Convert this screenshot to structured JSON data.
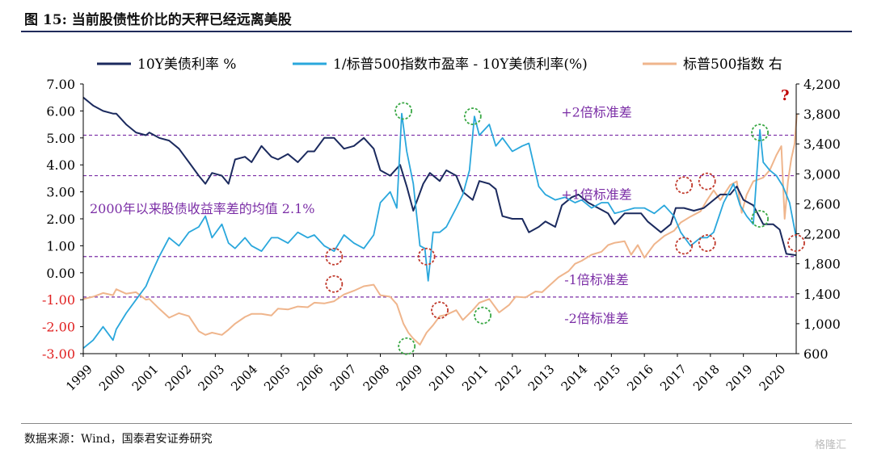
{
  "figure": {
    "title": "图 15:  当前股债性价比的天秤已经远离美股",
    "source": "数据来源：Wind，国泰君安证券研究",
    "watermark": "格隆汇"
  },
  "colors": {
    "treasury": "#1b2a5e",
    "spread": "#2aa7dc",
    "sp500": "#efb58c",
    "band": "#7b2ea6",
    "red_marker": "#c0392b",
    "green_marker": "#3aa845",
    "question": "#c00000"
  },
  "chart_data": {
    "type": "line",
    "x_range": [
      1999.0,
      2020.6
    ],
    "x_ticks": [
      "1999",
      "2000",
      "2001",
      "2002",
      "2003",
      "2004",
      "2005",
      "2006",
      "2007",
      "2008",
      "2009",
      "2010",
      "2011",
      "2012",
      "2013",
      "2014",
      "2015",
      "2016",
      "2017",
      "2018",
      "2019",
      "2020"
    ],
    "y_left": {
      "range": [
        -3,
        7
      ],
      "ticks": [
        "7.00",
        "6.00",
        "5.00",
        "4.00",
        "3.00",
        "2.00",
        "1.00",
        "0.00",
        "-1.00",
        "-2.00",
        "-3.00"
      ]
    },
    "y_right": {
      "range": [
        600,
        4200
      ],
      "ticks": [
        "4,200",
        "3,800",
        "3,400",
        "3,000",
        "2,600",
        "2,200",
        "1,800",
        "1,400",
        "1,000",
        "600"
      ]
    },
    "series": [
      {
        "name": "10Y美债利率 %",
        "axis": "left",
        "points": [
          [
            1999.0,
            6.5
          ],
          [
            1999.3,
            6.2
          ],
          [
            1999.6,
            6.0
          ],
          [
            1999.9,
            5.9
          ],
          [
            2000.0,
            5.9
          ],
          [
            2000.3,
            5.5
          ],
          [
            2000.6,
            5.2
          ],
          [
            2000.9,
            5.1
          ],
          [
            2001.0,
            5.2
          ],
          [
            2001.3,
            5.0
          ],
          [
            2001.6,
            4.9
          ],
          [
            2001.9,
            4.6
          ],
          [
            2002.2,
            4.1
          ],
          [
            2002.5,
            3.6
          ],
          [
            2002.7,
            3.3
          ],
          [
            2002.9,
            3.7
          ],
          [
            2003.2,
            3.6
          ],
          [
            2003.4,
            3.3
          ],
          [
            2003.6,
            4.2
          ],
          [
            2003.9,
            4.3
          ],
          [
            2004.1,
            4.1
          ],
          [
            2004.4,
            4.7
          ],
          [
            2004.7,
            4.3
          ],
          [
            2004.9,
            4.2
          ],
          [
            2005.2,
            4.4
          ],
          [
            2005.5,
            4.1
          ],
          [
            2005.8,
            4.5
          ],
          [
            2006.0,
            4.5
          ],
          [
            2006.3,
            5.0
          ],
          [
            2006.6,
            5.0
          ],
          [
            2006.9,
            4.6
          ],
          [
            2007.2,
            4.7
          ],
          [
            2007.5,
            5.0
          ],
          [
            2007.8,
            4.6
          ],
          [
            2008.0,
            3.8
          ],
          [
            2008.3,
            3.6
          ],
          [
            2008.6,
            4.0
          ],
          [
            2008.8,
            3.2
          ],
          [
            2009.0,
            2.3
          ],
          [
            2009.3,
            3.3
          ],
          [
            2009.5,
            3.7
          ],
          [
            2009.8,
            3.4
          ],
          [
            2010.0,
            3.8
          ],
          [
            2010.3,
            3.6
          ],
          [
            2010.5,
            3.0
          ],
          [
            2010.8,
            2.7
          ],
          [
            2011.0,
            3.4
          ],
          [
            2011.3,
            3.3
          ],
          [
            2011.5,
            3.1
          ],
          [
            2011.7,
            2.1
          ],
          [
            2012.0,
            2.0
          ],
          [
            2012.3,
            2.0
          ],
          [
            2012.5,
            1.5
          ],
          [
            2012.8,
            1.7
          ],
          [
            2013.0,
            1.9
          ],
          [
            2013.3,
            1.7
          ],
          [
            2013.5,
            2.5
          ],
          [
            2013.8,
            2.8
          ],
          [
            2014.0,
            2.9
          ],
          [
            2014.3,
            2.6
          ],
          [
            2014.6,
            2.4
          ],
          [
            2014.9,
            2.2
          ],
          [
            2015.1,
            1.8
          ],
          [
            2015.4,
            2.2
          ],
          [
            2015.7,
            2.2
          ],
          [
            2015.9,
            2.2
          ],
          [
            2016.1,
            1.9
          ],
          [
            2016.5,
            1.5
          ],
          [
            2016.8,
            1.8
          ],
          [
            2016.95,
            2.4
          ],
          [
            2017.2,
            2.4
          ],
          [
            2017.5,
            2.3
          ],
          [
            2017.8,
            2.4
          ],
          [
            2018.0,
            2.6
          ],
          [
            2018.3,
            2.9
          ],
          [
            2018.6,
            2.9
          ],
          [
            2018.8,
            3.2
          ],
          [
            2019.0,
            2.7
          ],
          [
            2019.3,
            2.5
          ],
          [
            2019.6,
            1.8
          ],
          [
            2019.9,
            1.8
          ],
          [
            2020.1,
            1.6
          ],
          [
            2020.3,
            0.7
          ],
          [
            2020.6,
            0.65
          ]
        ]
      },
      {
        "name": "1/标普500指数市盈率 - 10Y美债利率(%)",
        "axis": "left",
        "points": [
          [
            1999.0,
            -2.8
          ],
          [
            1999.3,
            -2.5
          ],
          [
            1999.6,
            -2.0
          ],
          [
            1999.9,
            -2.5
          ],
          [
            2000.0,
            -2.1
          ],
          [
            2000.3,
            -1.5
          ],
          [
            2000.6,
            -1.0
          ],
          [
            2000.9,
            -0.5
          ],
          [
            2001.0,
            -0.2
          ],
          [
            2001.3,
            0.6
          ],
          [
            2001.6,
            1.3
          ],
          [
            2001.9,
            1.0
          ],
          [
            2002.2,
            1.5
          ],
          [
            2002.5,
            1.7
          ],
          [
            2002.7,
            2.1
          ],
          [
            2002.9,
            1.3
          ],
          [
            2003.2,
            1.8
          ],
          [
            2003.4,
            1.1
          ],
          [
            2003.6,
            0.9
          ],
          [
            2003.9,
            1.3
          ],
          [
            2004.1,
            1.0
          ],
          [
            2004.4,
            0.8
          ],
          [
            2004.7,
            1.3
          ],
          [
            2004.9,
            1.3
          ],
          [
            2005.2,
            1.1
          ],
          [
            2005.5,
            1.5
          ],
          [
            2005.8,
            1.3
          ],
          [
            2006.0,
            1.4
          ],
          [
            2006.3,
            1.0
          ],
          [
            2006.6,
            0.8
          ],
          [
            2006.9,
            1.4
          ],
          [
            2007.2,
            1.1
          ],
          [
            2007.5,
            0.9
          ],
          [
            2007.8,
            1.4
          ],
          [
            2008.0,
            2.6
          ],
          [
            2008.3,
            3.0
          ],
          [
            2008.5,
            2.4
          ],
          [
            2008.65,
            5.9
          ],
          [
            2008.8,
            4.5
          ],
          [
            2009.0,
            3.3
          ],
          [
            2009.2,
            1.0
          ],
          [
            2009.35,
            0.9
          ],
          [
            2009.45,
            -0.3
          ],
          [
            2009.6,
            1.5
          ],
          [
            2009.8,
            1.5
          ],
          [
            2010.0,
            1.7
          ],
          [
            2010.3,
            2.4
          ],
          [
            2010.5,
            2.9
          ],
          [
            2010.7,
            3.8
          ],
          [
            2010.85,
            5.8
          ],
          [
            2011.0,
            5.1
          ],
          [
            2011.3,
            5.5
          ],
          [
            2011.5,
            4.7
          ],
          [
            2011.7,
            5.0
          ],
          [
            2012.0,
            4.5
          ],
          [
            2012.3,
            4.7
          ],
          [
            2012.5,
            4.8
          ],
          [
            2012.8,
            3.2
          ],
          [
            2013.0,
            2.9
          ],
          [
            2013.3,
            2.7
          ],
          [
            2013.6,
            2.8
          ],
          [
            2013.9,
            2.6
          ],
          [
            2014.1,
            2.7
          ],
          [
            2014.4,
            2.4
          ],
          [
            2014.7,
            2.6
          ],
          [
            2014.9,
            2.6
          ],
          [
            2015.1,
            2.2
          ],
          [
            2015.4,
            2.3
          ],
          [
            2015.7,
            2.4
          ],
          [
            2016.0,
            2.4
          ],
          [
            2016.3,
            2.2
          ],
          [
            2016.6,
            2.5
          ],
          [
            2016.9,
            2.1
          ],
          [
            2017.1,
            1.5
          ],
          [
            2017.4,
            1.0
          ],
          [
            2017.7,
            1.3
          ],
          [
            2017.9,
            1.3
          ],
          [
            2018.1,
            1.5
          ],
          [
            2018.4,
            2.6
          ],
          [
            2018.7,
            3.3
          ],
          [
            2018.9,
            2.5
          ],
          [
            2019.1,
            2.1
          ],
          [
            2019.3,
            1.8
          ],
          [
            2019.5,
            5.3
          ],
          [
            2019.6,
            4.1
          ],
          [
            2019.8,
            3.8
          ],
          [
            2020.0,
            3.6
          ],
          [
            2020.2,
            3.2
          ],
          [
            2020.4,
            2.6
          ],
          [
            2020.6,
            1.3
          ]
        ]
      },
      {
        "name": "标普500指数 右",
        "axis": "right",
        "points": [
          [
            1999.0,
            1330
          ],
          [
            1999.3,
            1360
          ],
          [
            1999.6,
            1410
          ],
          [
            1999.9,
            1380
          ],
          [
            2000.0,
            1460
          ],
          [
            2000.3,
            1400
          ],
          [
            2000.6,
            1420
          ],
          [
            2000.9,
            1320
          ],
          [
            2001.0,
            1330
          ],
          [
            2001.3,
            1200
          ],
          [
            2001.6,
            1080
          ],
          [
            2001.9,
            1140
          ],
          [
            2002.2,
            1100
          ],
          [
            2002.5,
            900
          ],
          [
            2002.7,
            850
          ],
          [
            2002.9,
            880
          ],
          [
            2003.2,
            850
          ],
          [
            2003.4,
            920
          ],
          [
            2003.6,
            1000
          ],
          [
            2003.9,
            1090
          ],
          [
            2004.1,
            1130
          ],
          [
            2004.4,
            1130
          ],
          [
            2004.7,
            1110
          ],
          [
            2004.9,
            1200
          ],
          [
            2005.2,
            1190
          ],
          [
            2005.5,
            1230
          ],
          [
            2005.8,
            1220
          ],
          [
            2006.0,
            1280
          ],
          [
            2006.3,
            1270
          ],
          [
            2006.6,
            1300
          ],
          [
            2006.9,
            1390
          ],
          [
            2007.2,
            1440
          ],
          [
            2007.5,
            1500
          ],
          [
            2007.8,
            1520
          ],
          [
            2008.0,
            1380
          ],
          [
            2008.3,
            1360
          ],
          [
            2008.5,
            1260
          ],
          [
            2008.7,
            1000
          ],
          [
            2008.85,
            880
          ],
          [
            2009.0,
            800
          ],
          [
            2009.2,
            720
          ],
          [
            2009.4,
            880
          ],
          [
            2009.6,
            980
          ],
          [
            2009.8,
            1100
          ],
          [
            2010.0,
            1120
          ],
          [
            2010.3,
            1180
          ],
          [
            2010.5,
            1050
          ],
          [
            2010.8,
            1180
          ],
          [
            2011.0,
            1280
          ],
          [
            2011.3,
            1330
          ],
          [
            2011.6,
            1150
          ],
          [
            2011.9,
            1250
          ],
          [
            2012.1,
            1360
          ],
          [
            2012.4,
            1350
          ],
          [
            2012.7,
            1430
          ],
          [
            2012.9,
            1420
          ],
          [
            2013.1,
            1500
          ],
          [
            2013.4,
            1620
          ],
          [
            2013.7,
            1700
          ],
          [
            2013.9,
            1800
          ],
          [
            2014.1,
            1840
          ],
          [
            2014.4,
            1920
          ],
          [
            2014.7,
            1960
          ],
          [
            2014.9,
            2050
          ],
          [
            2015.1,
            2080
          ],
          [
            2015.4,
            2100
          ],
          [
            2015.6,
            1920
          ],
          [
            2015.8,
            2050
          ],
          [
            2016.0,
            1880
          ],
          [
            2016.3,
            2060
          ],
          [
            2016.6,
            2170
          ],
          [
            2016.9,
            2240
          ],
          [
            2017.1,
            2350
          ],
          [
            2017.4,
            2430
          ],
          [
            2017.7,
            2500
          ],
          [
            2017.9,
            2650
          ],
          [
            2018.1,
            2780
          ],
          [
            2018.3,
            2650
          ],
          [
            2018.6,
            2850
          ],
          [
            2018.8,
            2900
          ],
          [
            2018.95,
            2480
          ],
          [
            2019.1,
            2720
          ],
          [
            2019.3,
            2900
          ],
          [
            2019.6,
            2950
          ],
          [
            2019.8,
            3050
          ],
          [
            2020.0,
            3250
          ],
          [
            2020.15,
            3370
          ],
          [
            2020.25,
            2400
          ],
          [
            2020.35,
            2900
          ],
          [
            2020.45,
            3200
          ],
          [
            2020.55,
            3400
          ],
          [
            2020.62,
            3800
          ]
        ]
      }
    ],
    "bands": [
      {
        "value": 5.1,
        "label": "+2倍标准差"
      },
      {
        "value": 3.6,
        "label": "+1倍标准差"
      },
      {
        "value": 0.6,
        "label": "-1倍标准差"
      },
      {
        "value": -0.9,
        "label": "-2倍标准差"
      }
    ],
    "mean_annotation": "2000年以来股债收益率差的均值 2.1%",
    "question_mark": "?"
  }
}
